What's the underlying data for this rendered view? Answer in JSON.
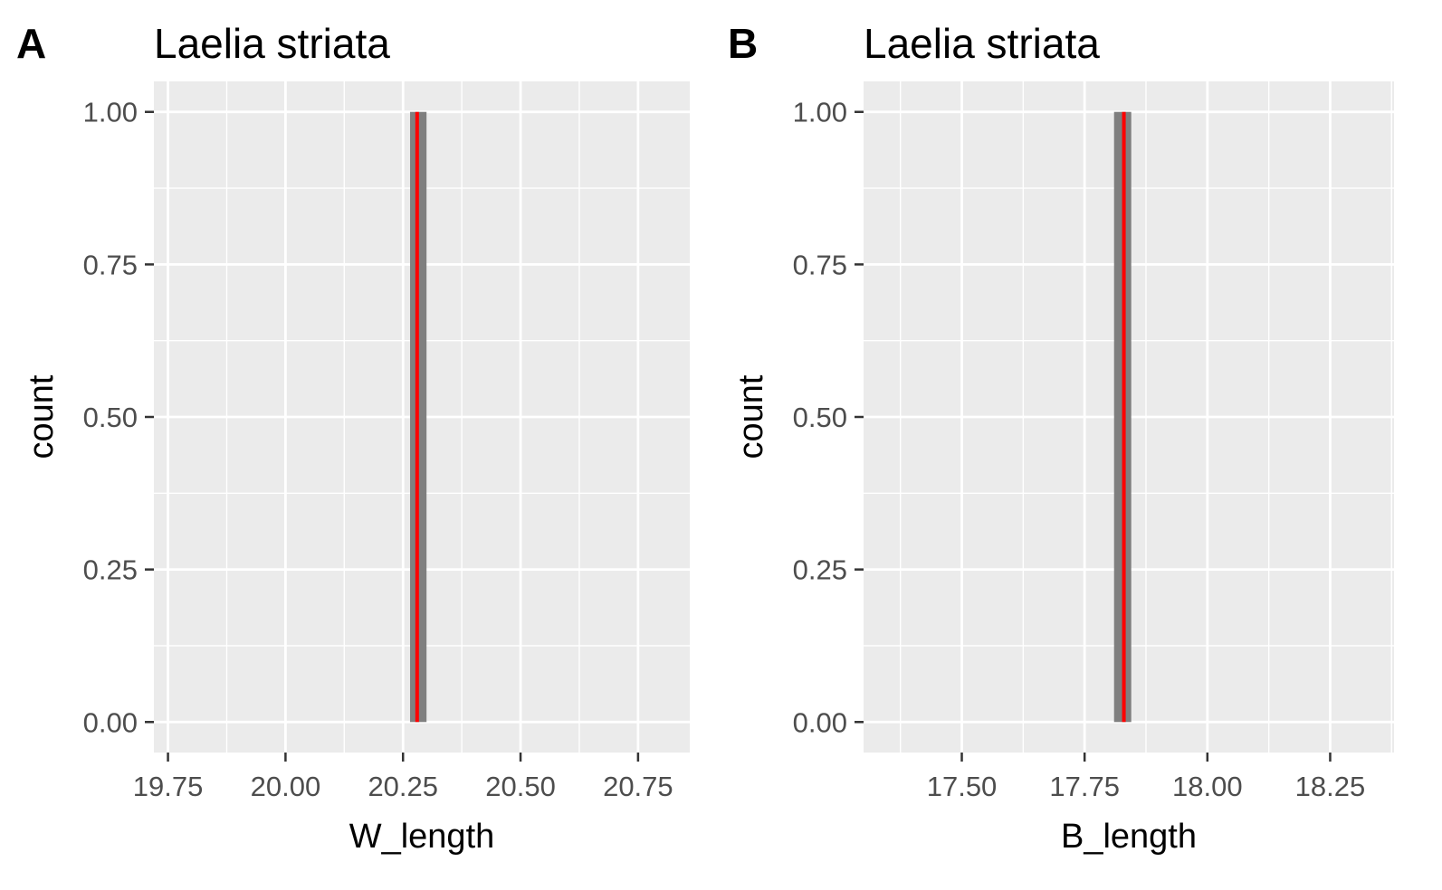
{
  "chart_data": [
    {
      "type": "bar",
      "tag": "A",
      "title": "Laelia striata",
      "xlabel": "W_length",
      "ylabel": "count",
      "xlim": [
        19.72,
        20.86
      ],
      "ylim": [
        -0.05,
        1.05
      ],
      "x_ticks": [
        19.75,
        20.0,
        20.25,
        20.5,
        20.75
      ],
      "x_tick_labels": [
        "19.75",
        "20.00",
        "20.25",
        "20.50",
        "20.75"
      ],
      "y_ticks": [
        0.0,
        0.25,
        0.5,
        0.75,
        1.0
      ],
      "y_tick_labels": [
        "0.00",
        "0.25",
        "0.50",
        "0.75",
        "1.00"
      ],
      "bins": [
        {
          "x0": 20.265,
          "x1": 20.3,
          "count": 1
        }
      ],
      "reference_line": {
        "x": 20.28,
        "color": "#ff0000"
      },
      "bar_color": "#7f7f7f",
      "grid": true
    },
    {
      "type": "bar",
      "tag": "B",
      "title": "Laelia striata",
      "xlabel": "B_length",
      "ylabel": "count",
      "xlim": [
        17.3,
        18.38
      ],
      "ylim": [
        -0.05,
        1.05
      ],
      "x_ticks": [
        17.5,
        17.75,
        18.0,
        18.25
      ],
      "x_tick_labels": [
        "17.50",
        "17.75",
        "18.00",
        "18.25"
      ],
      "y_ticks": [
        0.0,
        0.25,
        0.5,
        0.75,
        1.0
      ],
      "y_tick_labels": [
        "0.00",
        "0.25",
        "0.50",
        "0.75",
        "1.00"
      ],
      "bins": [
        {
          "x0": 17.81,
          "x1": 17.845,
          "count": 1
        }
      ],
      "reference_line": {
        "x": 17.83,
        "color": "#ff0000"
      },
      "bar_color": "#7f7f7f",
      "grid": true
    }
  ]
}
